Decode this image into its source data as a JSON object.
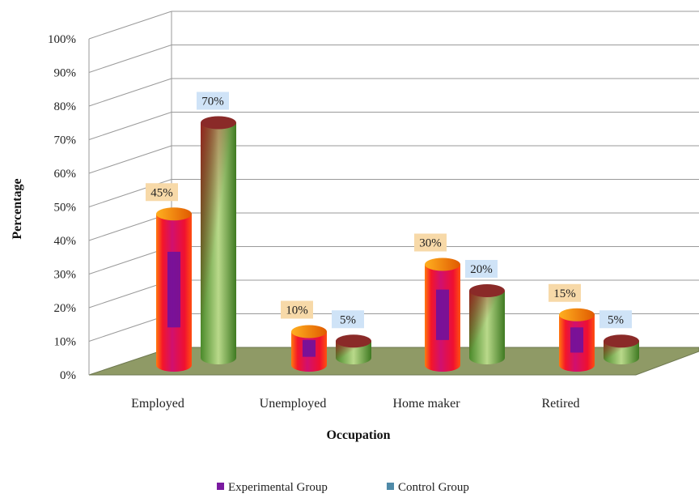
{
  "chart_data": {
    "type": "bar",
    "style": "3d-cylinder",
    "title": "",
    "xlabel": "Occupation",
    "ylabel": "Percentage",
    "categories": [
      "Employed",
      "Unemployed",
      "Home maker",
      "Retired"
    ],
    "yticks": [
      "0%",
      "10%",
      "20%",
      "30%",
      "40%",
      "50%",
      "60%",
      "70%",
      "80%",
      "90%",
      "100%"
    ],
    "ylim": [
      0,
      100
    ],
    "grid": true,
    "legend_position": "bottom",
    "series": [
      {
        "name": "Experimental Group",
        "values": [
          45,
          10,
          30,
          15
        ],
        "labels": [
          "45%",
          "10%",
          "30%",
          "15%"
        ],
        "color": "#e8102a",
        "label_bg": "#f7d9a8"
      },
      {
        "name": "Control Group",
        "values": [
          70,
          5,
          20,
          5
        ],
        "labels": [
          "70%",
          "5%",
          "20%",
          "5%"
        ],
        "color": "#5f9e3a",
        "label_bg": "#cfe3f7"
      }
    ],
    "floor_color": "#8f9a66"
  }
}
